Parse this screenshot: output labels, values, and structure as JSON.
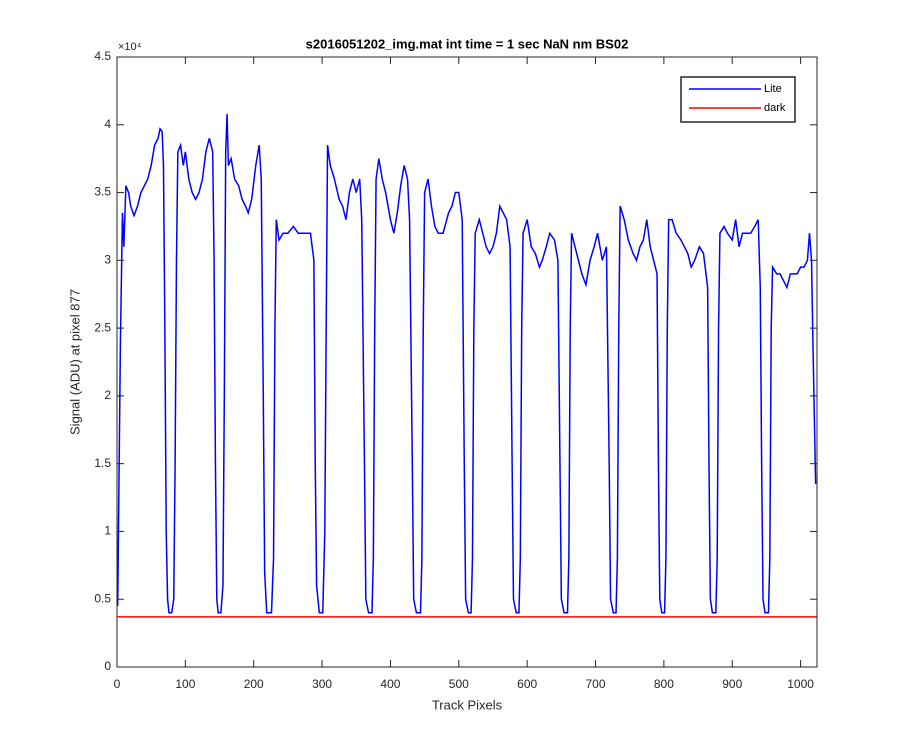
{
  "chart_data": {
    "type": "line",
    "title": "s2016051202_img.mat int time = 1 sec  NaN nm BS02",
    "x_label": "Track Pixels",
    "y_label": "Signal (ADU) at pixel 877",
    "y_exponent_label": "×10⁴",
    "xlim": [
      0,
      1024
    ],
    "ylim": [
      0,
      4.5
    ],
    "xticks": [
      0,
      100,
      200,
      300,
      400,
      500,
      600,
      700,
      800,
      900,
      1000
    ],
    "yticks": [
      0,
      0.5,
      1,
      1.5,
      2,
      2.5,
      3,
      3.5,
      4,
      4.5
    ],
    "grid": false,
    "legend": "upper right",
    "series": [
      {
        "name": "Lite",
        "color": "#0000ff",
        "x": [
          1,
          5,
          8,
          10,
          13,
          17,
          20,
          25,
          30,
          35,
          40,
          45,
          50,
          55,
          60,
          63,
          66,
          68,
          70,
          72,
          74,
          76,
          80,
          83,
          85,
          87,
          89,
          93,
          97,
          100,
          105,
          110,
          115,
          120,
          125,
          130,
          135,
          140,
          142,
          144,
          146,
          148,
          152,
          155,
          157,
          159,
          161,
          163,
          167,
          172,
          178,
          183,
          188,
          192,
          197,
          203,
          208,
          211,
          214,
          216,
          219,
          226,
          229,
          231,
          233,
          237,
          243,
          250,
          258,
          265,
          283,
          288,
          290,
          292,
          296,
          301,
          304,
          306,
          308,
          312,
          318,
          325,
          330,
          335,
          340,
          345,
          350,
          355,
          358,
          362,
          364,
          368,
          373,
          375,
          377,
          379,
          383,
          388,
          393,
          400,
          405,
          410,
          415,
          420,
          425,
          428,
          432,
          434,
          438,
          444,
          446,
          448,
          450,
          455,
          460,
          465,
          470,
          477,
          485,
          490,
          495,
          500,
          505,
          508,
          510,
          514,
          518,
          520,
          522,
          524,
          530,
          535,
          540,
          545,
          550,
          555,
          560,
          570,
          575,
          578,
          580,
          584,
          588,
          590,
          592,
          594,
          600,
          606,
          612,
          618,
          622,
          628,
          633,
          640,
          645,
          648,
          650,
          654,
          659,
          661,
          663,
          665,
          670,
          675,
          680,
          686,
          692,
          698,
          703,
          710,
          716,
          720,
          722,
          726,
          730,
          732,
          734,
          736,
          742,
          748,
          755,
          760,
          765,
          770,
          775,
          780,
          785,
          790,
          792,
          794,
          797,
          801,
          803,
          805,
          807,
          812,
          818,
          825,
          830,
          835,
          840,
          845,
          852,
          858,
          864,
          866,
          868,
          871,
          876,
          878,
          880,
          882,
          888,
          893,
          900,
          905,
          910,
          915,
          920,
          927,
          933,
          938,
          941,
          943,
          945,
          948,
          953,
          955,
          957,
          959,
          965,
          970,
          975,
          980,
          985,
          990,
          995,
          1000,
          1005,
          1010,
          1013,
          1016,
          1018,
          1022
        ],
        "values": [
          0.45,
          2.4,
          3.35,
          3.1,
          3.55,
          3.5,
          3.4,
          3.33,
          3.4,
          3.5,
          3.55,
          3.6,
          3.7,
          3.85,
          3.9,
          3.97,
          3.95,
          3.7,
          2.5,
          1.0,
          0.5,
          0.4,
          0.4,
          0.5,
          1.5,
          3.0,
          3.8,
          3.85,
          3.7,
          3.8,
          3.6,
          3.5,
          3.45,
          3.5,
          3.6,
          3.8,
          3.9,
          3.8,
          3.0,
          1.5,
          0.5,
          0.4,
          0.4,
          0.6,
          2.0,
          3.8,
          4.08,
          3.7,
          3.75,
          3.6,
          3.55,
          3.45,
          3.4,
          3.35,
          3.45,
          3.7,
          3.85,
          3.6,
          2.0,
          0.7,
          0.4,
          0.4,
          0.8,
          2.5,
          3.3,
          3.15,
          3.2,
          3.2,
          3.25,
          3.2,
          3.2,
          3.0,
          1.5,
          0.6,
          0.4,
          0.4,
          1.0,
          2.5,
          3.85,
          3.7,
          3.6,
          3.45,
          3.4,
          3.3,
          3.5,
          3.6,
          3.5,
          3.6,
          3.3,
          1.5,
          0.5,
          0.4,
          0.4,
          0.8,
          2.5,
          3.6,
          3.75,
          3.6,
          3.5,
          3.3,
          3.2,
          3.35,
          3.55,
          3.7,
          3.6,
          3.3,
          1.5,
          0.5,
          0.4,
          0.4,
          0.8,
          2.5,
          3.5,
          3.6,
          3.4,
          3.25,
          3.2,
          3.2,
          3.35,
          3.4,
          3.5,
          3.5,
          3.3,
          1.5,
          0.5,
          0.4,
          0.4,
          0.8,
          2.5,
          3.2,
          3.3,
          3.2,
          3.1,
          3.05,
          3.1,
          3.2,
          3.4,
          3.3,
          3.1,
          1.5,
          0.5,
          0.4,
          0.4,
          0.8,
          2.5,
          3.2,
          3.3,
          3.1,
          3.05,
          2.95,
          3.0,
          3.1,
          3.2,
          3.15,
          3.0,
          1.5,
          0.5,
          0.4,
          0.4,
          0.8,
          2.5,
          3.2,
          3.1,
          3.0,
          2.9,
          2.82,
          3.0,
          3.1,
          3.2,
          3.0,
          3.1,
          1.5,
          0.5,
          0.4,
          0.4,
          0.8,
          2.5,
          3.4,
          3.3,
          3.15,
          3.05,
          3.0,
          3.1,
          3.15,
          3.3,
          3.1,
          3.0,
          2.9,
          1.5,
          0.5,
          0.4,
          0.4,
          0.8,
          2.5,
          3.3,
          3.3,
          3.2,
          3.15,
          3.1,
          3.05,
          2.95,
          3.0,
          3.1,
          3.05,
          2.8,
          1.5,
          0.5,
          0.4,
          0.4,
          0.8,
          2.5,
          3.2,
          3.25,
          3.2,
          3.15,
          3.3,
          3.1,
          3.2,
          3.2,
          3.2,
          3.25,
          3.3,
          2.8,
          1.5,
          0.5,
          0.4,
          0.4,
          0.8,
          2.5,
          2.95,
          2.9,
          2.9,
          2.85,
          2.8,
          2.9,
          2.9,
          2.9,
          2.95,
          2.95,
          3.0,
          3.2,
          3.0,
          2.4,
          1.35
        ]
      },
      {
        "name": "dark",
        "color": "#ff0000",
        "x": [
          1,
          1024
        ],
        "values": [
          0.37,
          0.37
        ]
      }
    ]
  }
}
